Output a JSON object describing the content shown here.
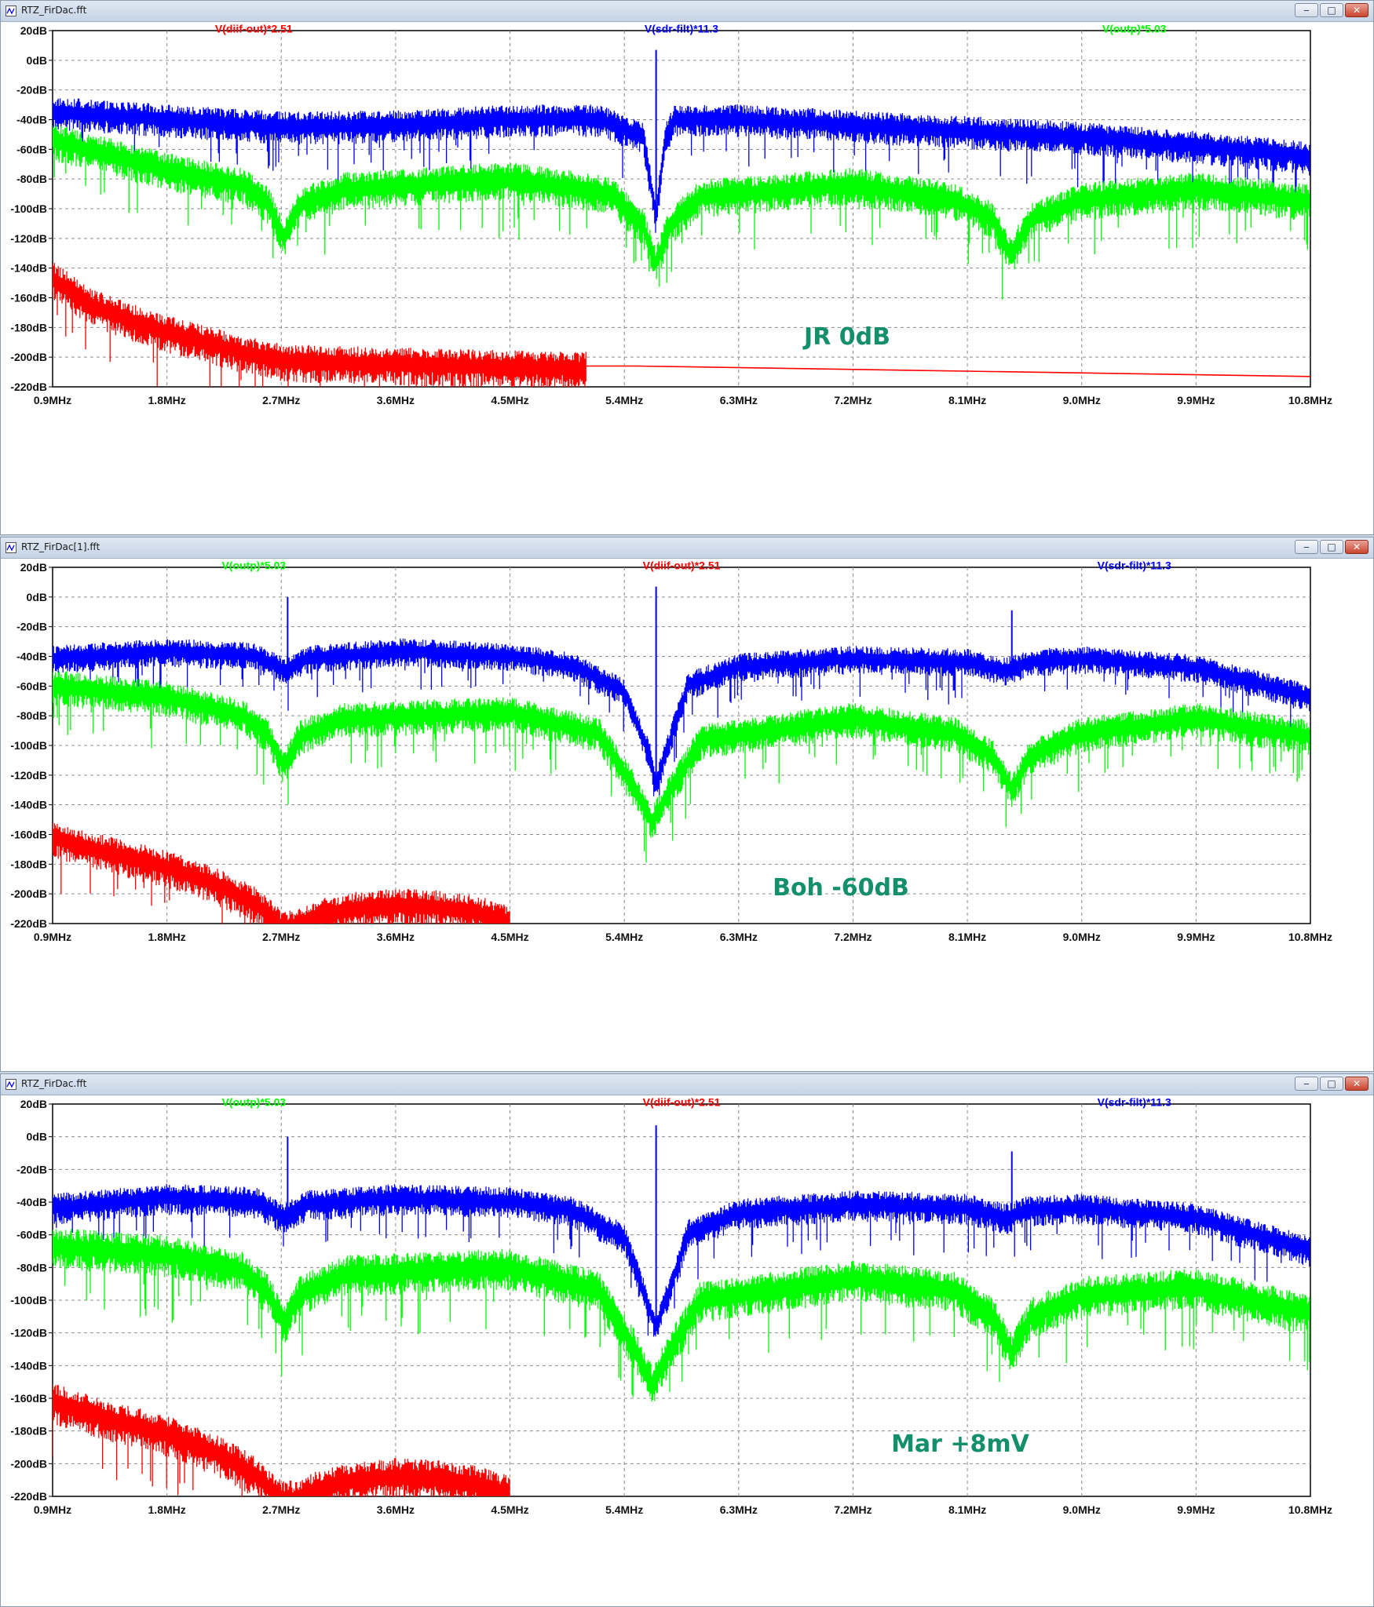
{
  "windows": [
    {
      "title": "RTZ_FirDac.fft",
      "buttons": {
        "minimize": "‒",
        "maximize": "□",
        "close": "✕"
      },
      "annotation": "JR 0dB",
      "chart_data": {
        "type": "line",
        "xlabel": "",
        "ylabel": "",
        "xlim": [
          0.9,
          10.8
        ],
        "ylim": [
          -220,
          20
        ],
        "x_ticks": [
          "0.9MHz",
          "1.8MHz",
          "2.7MHz",
          "3.6MHz",
          "4.5MHz",
          "5.4MHz",
          "6.3MHz",
          "7.2MHz",
          "8.1MHz",
          "9.0MHz",
          "9.9MHz",
          "10.8MHz"
        ],
        "y_ticks": [
          "20dB",
          "0dB",
          "-20dB",
          "-40dB",
          "-60dB",
          "-80dB",
          "-100dB",
          "-120dB",
          "-140dB",
          "-160dB",
          "-180dB",
          "-200dB",
          "-220dB"
        ],
        "grid": true,
        "legend": [
          {
            "name": "V(diif-out)*2.51",
            "color": "#ff0000",
            "position": "left"
          },
          {
            "name": "V(sdr-filt)*11.3",
            "color": "#0000ff",
            "position": "center"
          },
          {
            "name": "V(outp)*5.03",
            "color": "#00ff00",
            "position": "right"
          }
        ],
        "series": [
          {
            "name": "V(sdr-filt)*11.3",
            "color": "#0000ff",
            "noise": 14,
            "x": [
              0.9,
              1.8,
              2.7,
              3.6,
              4.5,
              5.2,
              5.55,
              5.65,
              5.72,
              5.8,
              6.3,
              7.2,
              8.1,
              9.0,
              9.9,
              10.8
            ],
            "y": [
              -33,
              -38,
              -43,
              -42,
              -38,
              -38,
              -50,
              -105,
              -50,
              -38,
              -38,
              -42,
              -46,
              -50,
              -56,
              -63
            ],
            "spikes": [
              {
                "x": 5.65,
                "y": 7
              }
            ]
          },
          {
            "name": "V(outp)*5.03",
            "color": "#00ff00",
            "noise": 16,
            "x": [
              0.9,
              1.8,
              2.4,
              2.6,
              2.72,
              2.85,
              3.2,
              4.5,
              5.3,
              5.55,
              5.65,
              5.75,
              6.0,
              7.2,
              8.0,
              8.3,
              8.44,
              8.6,
              9.0,
              9.9,
              10.8
            ],
            "y": [
              -52,
              -72,
              -82,
              -95,
              -118,
              -95,
              -85,
              -78,
              -88,
              -110,
              -135,
              -110,
              -90,
              -82,
              -92,
              -105,
              -130,
              -105,
              -92,
              -85,
              -93
            ],
            "spikes": []
          },
          {
            "name": "V(diif-out)*2.51",
            "color": "#ff0000",
            "noise": 16,
            "noise_end": 5.1,
            "x": [
              0.9,
              1.2,
              1.6,
              2.0,
              2.4,
              2.75,
              3.6,
              4.5,
              5.1,
              5.5,
              10.8
            ],
            "y": [
              -145,
              -163,
              -176,
              -186,
              -195,
              -201,
              -203,
              -205,
              -206,
              -206,
              -213
            ],
            "spikes": []
          }
        ]
      }
    },
    {
      "title": "RTZ_FirDac[1].fft",
      "buttons": {
        "minimize": "‒",
        "maximize": "□",
        "close": "✕"
      },
      "annotation": "Boh -60dB",
      "chart_data": {
        "type": "line",
        "xlabel": "",
        "ylabel": "",
        "xlim": [
          0.9,
          10.8
        ],
        "ylim": [
          -220,
          20
        ],
        "x_ticks": [
          "0.9MHz",
          "1.8MHz",
          "2.7MHz",
          "3.6MHz",
          "4.5MHz",
          "5.4MHz",
          "6.3MHz",
          "7.2MHz",
          "8.1MHz",
          "9.0MHz",
          "9.9MHz",
          "10.8MHz"
        ],
        "y_ticks": [
          "20dB",
          "0dB",
          "-20dB",
          "-40dB",
          "-60dB",
          "-80dB",
          "-100dB",
          "-120dB",
          "-140dB",
          "-160dB",
          "-180dB",
          "-200dB",
          "-220dB"
        ],
        "grid": true,
        "legend": [
          {
            "name": "V(outp)*5.03",
            "color": "#00ff00",
            "position": "left"
          },
          {
            "name": "V(diif-out)*2.51",
            "color": "#ff0000",
            "position": "center"
          },
          {
            "name": "V(sdr-filt)*11.3",
            "color": "#0000ff",
            "position": "right"
          }
        ],
        "series": [
          {
            "name": "V(sdr-filt)*11.3",
            "color": "#0000ff",
            "noise": 12,
            "x": [
              0.9,
              1.8,
              2.5,
              2.72,
              2.9,
              3.6,
              4.5,
              5.0,
              5.4,
              5.6,
              5.65,
              5.72,
              5.9,
              6.3,
              7.2,
              8.1,
              8.4,
              8.6,
              9.0,
              9.9,
              10.8
            ],
            "y": [
              -40,
              -35,
              -38,
              -48,
              -40,
              -35,
              -38,
              -45,
              -62,
              -105,
              -125,
              -105,
              -58,
              -45,
              -40,
              -42,
              -48,
              -42,
              -40,
              -46,
              -66
            ],
            "spikes": [
              {
                "x": 2.75,
                "y": 0
              },
              {
                "x": 5.65,
                "y": 7
              },
              {
                "x": 8.45,
                "y": -9
              }
            ]
          },
          {
            "name": "V(outp)*5.03",
            "color": "#00ff00",
            "noise": 15,
            "x": [
              0.9,
              1.8,
              2.4,
              2.6,
              2.72,
              2.85,
              3.2,
              4.5,
              5.2,
              5.5,
              5.62,
              5.75,
              6.0,
              7.2,
              8.0,
              8.3,
              8.45,
              8.6,
              9.0,
              9.9,
              10.8
            ],
            "y": [
              -58,
              -66,
              -78,
              -92,
              -112,
              -92,
              -80,
              -76,
              -90,
              -130,
              -150,
              -130,
              -95,
              -80,
              -90,
              -105,
              -128,
              -105,
              -90,
              -80,
              -92
            ],
            "spikes": []
          },
          {
            "name": "V(diif-out)*2.51",
            "color": "#ff0000",
            "noise": 16,
            "noise_end": 4.55,
            "x": [
              0.9,
              1.3,
              1.8,
              2.2,
              2.5,
              2.7,
              2.8,
              3.05,
              3.3,
              3.6,
              3.9,
              4.2,
              4.5
            ],
            "y": [
              -160,
              -170,
              -180,
              -192,
              -205,
              -220,
              -220,
              -212,
              -208,
              -206,
              -207,
              -210,
              -217
            ],
            "spikes": []
          }
        ]
      }
    },
    {
      "title": "RTZ_FirDac.fft",
      "buttons": {
        "minimize": "‒",
        "maximize": "□",
        "close": "✕"
      },
      "annotation": "Mar +8mV",
      "chart_data": {
        "type": "line",
        "xlabel": "",
        "ylabel": "",
        "xlim": [
          0.9,
          10.8
        ],
        "ylim": [
          -220,
          20
        ],
        "x_ticks": [
          "0.9MHz",
          "1.8MHz",
          "2.7MHz",
          "3.6MHz",
          "4.5MHz",
          "5.4MHz",
          "6.3MHz",
          "7.2MHz",
          "8.1MHz",
          "9.0MHz",
          "9.9MHz",
          "10.8MHz"
        ],
        "y_ticks": [
          "20dB",
          "0dB",
          "-20dB",
          "-40dB",
          "-60dB",
          "-80dB",
          "-100dB",
          "-120dB",
          "-140dB",
          "-160dB",
          "-180dB",
          "-200dB",
          "-220dB"
        ],
        "grid": true,
        "legend": [
          {
            "name": "V(outp)*5.03",
            "color": "#00ff00",
            "position": "left"
          },
          {
            "name": "V(diif-out)*2.51",
            "color": "#ff0000",
            "position": "center"
          },
          {
            "name": "V(sdr-filt)*11.3",
            "color": "#0000ff",
            "position": "right"
          }
        ],
        "series": [
          {
            "name": "V(sdr-filt)*11.3",
            "color": "#0000ff",
            "noise": 12,
            "x": [
              0.9,
              1.8,
              2.5,
              2.72,
              2.9,
              3.6,
              4.5,
              5.0,
              5.4,
              5.58,
              5.65,
              5.72,
              5.9,
              6.3,
              7.2,
              8.1,
              8.4,
              8.6,
              9.0,
              9.9,
              10.8
            ],
            "y": [
              -42,
              -36,
              -38,
              -48,
              -40,
              -36,
              -38,
              -44,
              -60,
              -100,
              -115,
              -100,
              -58,
              -45,
              -40,
              -42,
              -48,
              -43,
              -42,
              -48,
              -68
            ],
            "spikes": [
              {
                "x": 2.75,
                "y": 0
              },
              {
                "x": 5.65,
                "y": 7
              },
              {
                "x": 8.45,
                "y": -9
              }
            ]
          },
          {
            "name": "V(outp)*5.03",
            "color": "#00ff00",
            "noise": 16,
            "x": [
              0.9,
              1.8,
              2.4,
              2.6,
              2.72,
              2.85,
              3.2,
              4.5,
              5.2,
              5.5,
              5.62,
              5.75,
              6.0,
              7.2,
              8.0,
              8.3,
              8.45,
              8.6,
              9.0,
              9.9,
              10.8
            ],
            "y": [
              -65,
              -70,
              -80,
              -94,
              -112,
              -94,
              -82,
              -78,
              -92,
              -130,
              -150,
              -130,
              -98,
              -85,
              -92,
              -108,
              -130,
              -108,
              -95,
              -90,
              -106
            ],
            "spikes": []
          },
          {
            "name": "V(diif-out)*2.51",
            "color": "#ff0000",
            "noise": 16,
            "noise_end": 4.55,
            "x": [
              0.9,
              1.3,
              1.8,
              2.2,
              2.5,
              2.7,
              2.8,
              3.05,
              3.3,
              3.6,
              3.9,
              4.2,
              4.5
            ],
            "y": [
              -160,
              -170,
              -180,
              -192,
              -205,
              -220,
              -220,
              -212,
              -208,
              -206,
              -207,
              -210,
              -217
            ],
            "spikes": []
          }
        ]
      }
    }
  ]
}
